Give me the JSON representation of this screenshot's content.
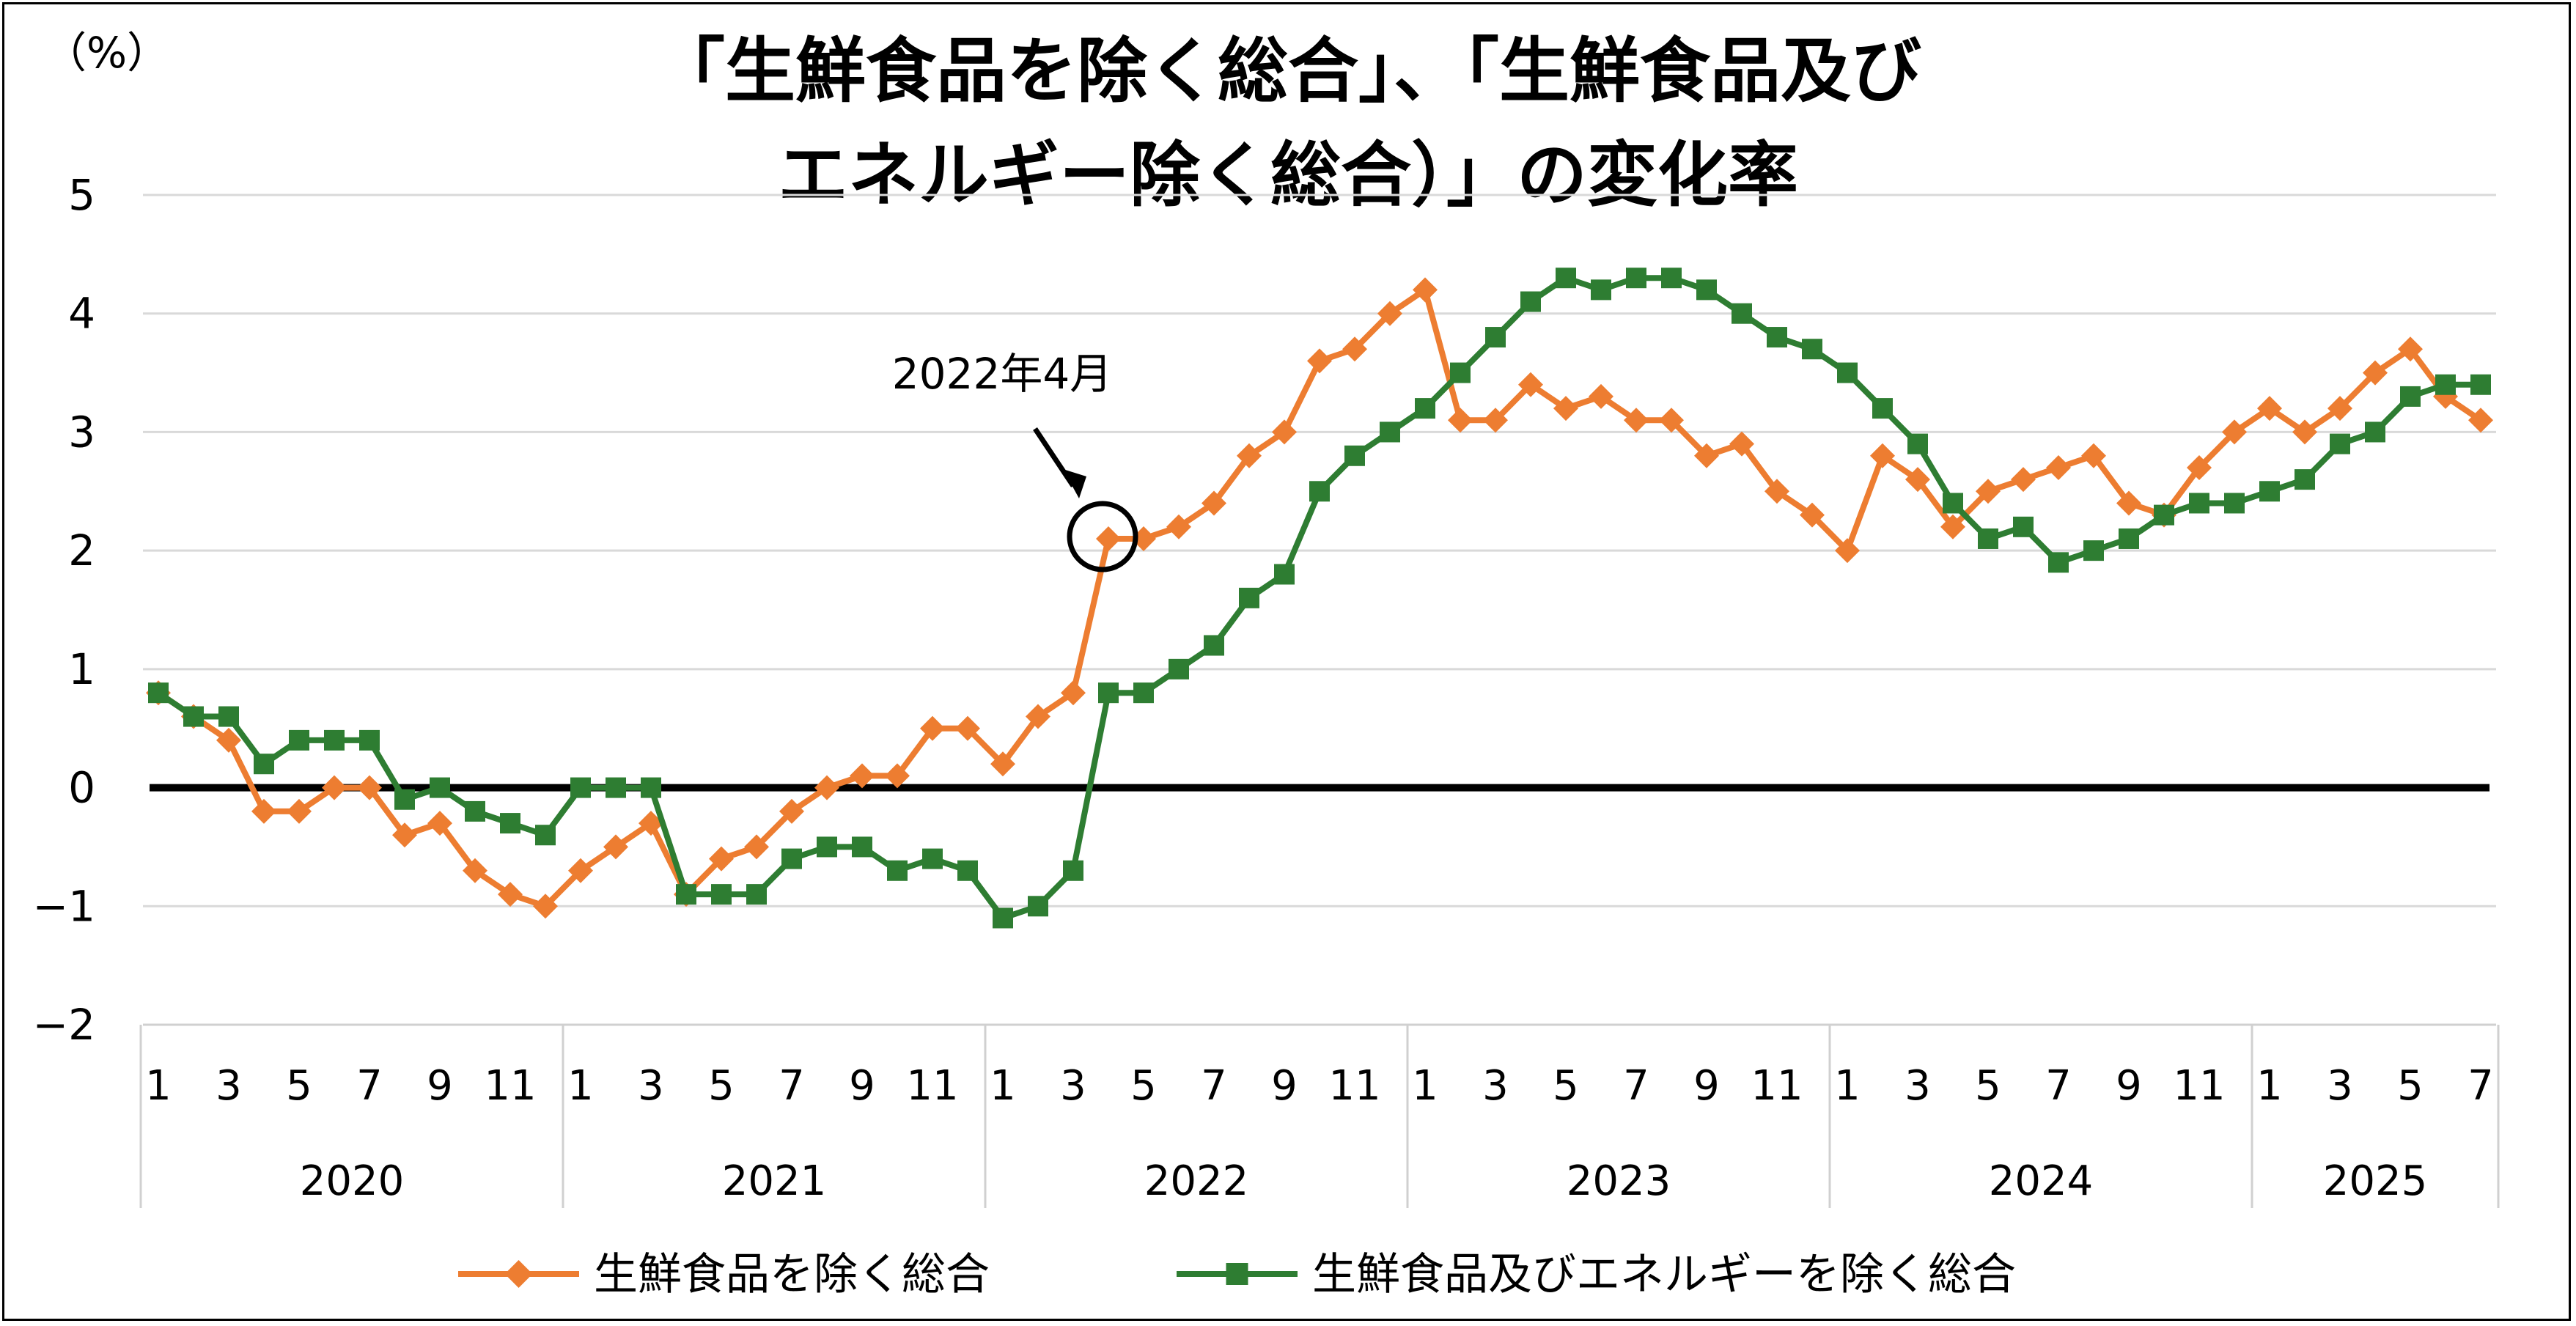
{
  "chart_data": {
    "type": "line",
    "title_lines": [
      "「生鮮食品を除く総合」、「生鮮食品及び",
      "エネルギー除く総合）」の変化率"
    ],
    "ylabel": "（%）",
    "ylim": [
      -2,
      5
    ],
    "yticks": [
      5,
      4,
      3,
      2,
      1,
      0,
      -1,
      -2
    ],
    "ytick_labels": [
      "5",
      "4",
      "3",
      "2",
      "1",
      "0",
      "−1",
      "−2"
    ],
    "x_month_labels": [
      "1",
      "3",
      "5",
      "7",
      "9",
      "11",
      "1",
      "3",
      "5",
      "7",
      "9",
      "11",
      "1",
      "3",
      "5",
      "7",
      "9",
      "11",
      "1",
      "3",
      "5",
      "7",
      "9",
      "11",
      "1",
      "3",
      "5",
      "7",
      "9",
      "11",
      "1",
      "3",
      "5",
      "7"
    ],
    "years": [
      "2020",
      "2021",
      "2022",
      "2023",
      "2024",
      "2025"
    ],
    "year_month_counts": [
      12,
      12,
      12,
      12,
      12,
      7
    ],
    "series": [
      {
        "name": "生鮮食品を除く総合",
        "color": "#ED7D31",
        "marker": "diamond",
        "values": [
          0.8,
          0.6,
          0.4,
          -0.2,
          -0.2,
          0.0,
          0.0,
          -0.4,
          -0.3,
          -0.7,
          -0.9,
          -1.0,
          -0.7,
          -0.5,
          -0.3,
          -0.9,
          -0.6,
          -0.5,
          -0.2,
          0.0,
          0.1,
          0.1,
          0.5,
          0.5,
          0.2,
          0.6,
          0.8,
          2.1,
          2.1,
          2.2,
          2.4,
          2.8,
          3.0,
          3.6,
          3.7,
          4.0,
          4.2,
          3.1,
          3.1,
          3.4,
          3.2,
          3.3,
          3.1,
          3.1,
          2.8,
          2.9,
          2.5,
          2.3,
          2.0,
          2.8,
          2.6,
          2.2,
          2.5,
          2.6,
          2.7,
          2.8,
          2.4,
          2.3,
          2.7,
          3.0,
          3.2,
          3.0,
          3.2,
          3.5,
          3.7,
          3.3,
          3.1
        ]
      },
      {
        "name": "生鮮食品及びエネルギーを除く総合",
        "color": "#2E7D32",
        "marker": "square",
        "values": [
          0.8,
          0.6,
          0.6,
          0.2,
          0.4,
          0.4,
          0.4,
          -0.1,
          0.0,
          -0.2,
          -0.3,
          -0.4,
          0.0,
          0.0,
          0.0,
          -0.9,
          -0.9,
          -0.9,
          -0.6,
          -0.5,
          -0.5,
          -0.7,
          -0.6,
          -0.7,
          -1.1,
          -1.0,
          -0.7,
          0.8,
          0.8,
          1.0,
          1.2,
          1.6,
          1.8,
          2.5,
          2.8,
          3.0,
          3.2,
          3.5,
          3.8,
          4.1,
          4.3,
          4.2,
          4.3,
          4.3,
          4.2,
          4.0,
          3.8,
          3.7,
          3.5,
          3.2,
          2.9,
          2.4,
          2.1,
          2.2,
          1.9,
          2.0,
          2.1,
          2.3,
          2.4,
          2.4,
          2.5,
          2.6,
          2.9,
          3.0,
          3.3,
          3.4,
          3.4
        ]
      }
    ],
    "annotation": {
      "text": "2022年4月",
      "point_index": 27
    },
    "grid": true,
    "legend_position": "bottom"
  }
}
